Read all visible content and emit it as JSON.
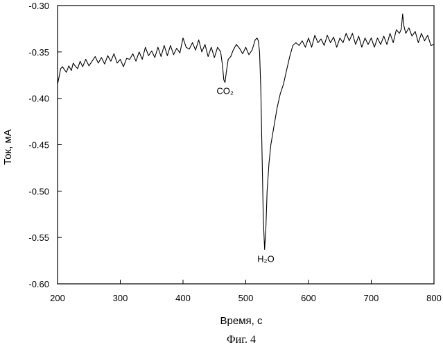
{
  "chart_data": {
    "type": "line",
    "xlabel": "Время, с",
    "ylabel": "Ток, мА",
    "xlim": [
      200,
      800
    ],
    "ylim": [
      -0.6,
      -0.3
    ],
    "x_ticks": [
      "200",
      "300",
      "400",
      "500",
      "600",
      "700",
      "800"
    ],
    "y_ticks": [
      "-0.30",
      "-0.35",
      "-0.40",
      "-0.45",
      "-0.50",
      "-0.55",
      "-0.60"
    ],
    "grid": false,
    "legend": "none",
    "line_color": "#000000",
    "series": [
      {
        "x": [
          200,
          203,
          205,
          208,
          210,
          214,
          218,
          222,
          225,
          228,
          232,
          236,
          240,
          245,
          250,
          255,
          260,
          265,
          270,
          275,
          280,
          285,
          290,
          295,
          300,
          305,
          310,
          315,
          320,
          325,
          330,
          335,
          340,
          345,
          350,
          355,
          360,
          365,
          370,
          375,
          380,
          385,
          390,
          395,
          400,
          405,
          410,
          415,
          420,
          425,
          430,
          435,
          440,
          445,
          450,
          455,
          460,
          463,
          465,
          467,
          469,
          472,
          476,
          480,
          485,
          490,
          495,
          500,
          505,
          510,
          515,
          518,
          520,
          522,
          524,
          526,
          528,
          530,
          532,
          534,
          537,
          540,
          545,
          550,
          555,
          560,
          565,
          570,
          575,
          580,
          585,
          590,
          595,
          600,
          605,
          610,
          615,
          620,
          625,
          630,
          635,
          640,
          645,
          650,
          655,
          660,
          665,
          670,
          675,
          680,
          685,
          690,
          695,
          700,
          705,
          710,
          715,
          720,
          725,
          730,
          735,
          740,
          745,
          748,
          750,
          752,
          755,
          760,
          765,
          770,
          775,
          780,
          785,
          790,
          795,
          800
        ],
        "y": [
          -0.385,
          -0.375,
          -0.368,
          -0.366,
          -0.368,
          -0.372,
          -0.365,
          -0.37,
          -0.362,
          -0.365,
          -0.368,
          -0.36,
          -0.366,
          -0.358,
          -0.365,
          -0.36,
          -0.355,
          -0.362,
          -0.356,
          -0.363,
          -0.354,
          -0.36,
          -0.352,
          -0.362,
          -0.358,
          -0.366,
          -0.357,
          -0.358,
          -0.352,
          -0.36,
          -0.35,
          -0.358,
          -0.345,
          -0.354,
          -0.349,
          -0.356,
          -0.345,
          -0.355,
          -0.343,
          -0.354,
          -0.343,
          -0.353,
          -0.346,
          -0.351,
          -0.335,
          -0.345,
          -0.347,
          -0.34,
          -0.348,
          -0.337,
          -0.35,
          -0.342,
          -0.355,
          -0.345,
          -0.356,
          -0.345,
          -0.35,
          -0.365,
          -0.38,
          -0.383,
          -0.372,
          -0.358,
          -0.355,
          -0.348,
          -0.342,
          -0.346,
          -0.352,
          -0.345,
          -0.353,
          -0.348,
          -0.337,
          -0.335,
          -0.338,
          -0.35,
          -0.39,
          -0.46,
          -0.53,
          -0.563,
          -0.54,
          -0.5,
          -0.47,
          -0.45,
          -0.43,
          -0.41,
          -0.395,
          -0.385,
          -0.37,
          -0.355,
          -0.343,
          -0.34,
          -0.343,
          -0.338,
          -0.345,
          -0.335,
          -0.345,
          -0.332,
          -0.34,
          -0.336,
          -0.343,
          -0.332,
          -0.34,
          -0.334,
          -0.345,
          -0.335,
          -0.34,
          -0.33,
          -0.338,
          -0.33,
          -0.342,
          -0.333,
          -0.345,
          -0.335,
          -0.342,
          -0.335,
          -0.345,
          -0.335,
          -0.342,
          -0.333,
          -0.342,
          -0.33,
          -0.34,
          -0.326,
          -0.33,
          -0.325,
          -0.309,
          -0.322,
          -0.33,
          -0.324,
          -0.333,
          -0.328,
          -0.34,
          -0.33,
          -0.338,
          -0.332,
          -0.343,
          -0.342
        ]
      }
    ],
    "annotations": [
      {
        "text": "CO₂",
        "x": 467,
        "y": -0.388
      },
      {
        "text": "H₂O",
        "x": 532,
        "y": -0.569
      }
    ],
    "caption": "Фиг. 4"
  }
}
